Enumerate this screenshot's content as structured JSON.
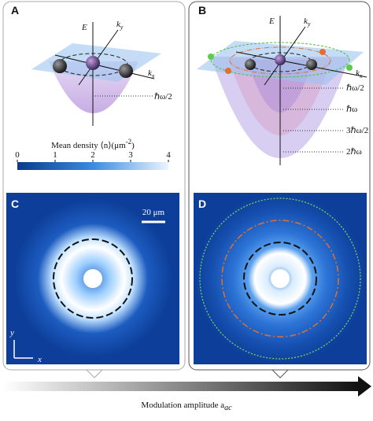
{
  "panels": {
    "a": {
      "label": "A",
      "e": "E",
      "ky": {
        "base": "k",
        "sub": "y"
      },
      "kx": {
        "base": "k",
        "sub": "x"
      },
      "level": "ℏω/2"
    },
    "b": {
      "label": "B",
      "e": "E",
      "ky": {
        "base": "k",
        "sub": "y"
      },
      "kx": {
        "base": "k",
        "sub": "x"
      },
      "levels": [
        "ℏω/2",
        "ℏω",
        "3ℏω/2",
        "2ℏω"
      ]
    },
    "c": {
      "label": "C",
      "scale": "20 μm",
      "y": "y",
      "x": "x"
    },
    "d": {
      "label": "D"
    }
  },
  "colorbar": {
    "title": {
      "text": "Mean density ⟨n⟩(μm",
      "sup": "-2",
      "close": ")"
    },
    "lim": [
      0,
      4
    ],
    "ticks": [
      0,
      1,
      2,
      3,
      4
    ]
  },
  "footer": {
    "text": "Modulation amplitude a",
    "sub": "ac"
  }
}
